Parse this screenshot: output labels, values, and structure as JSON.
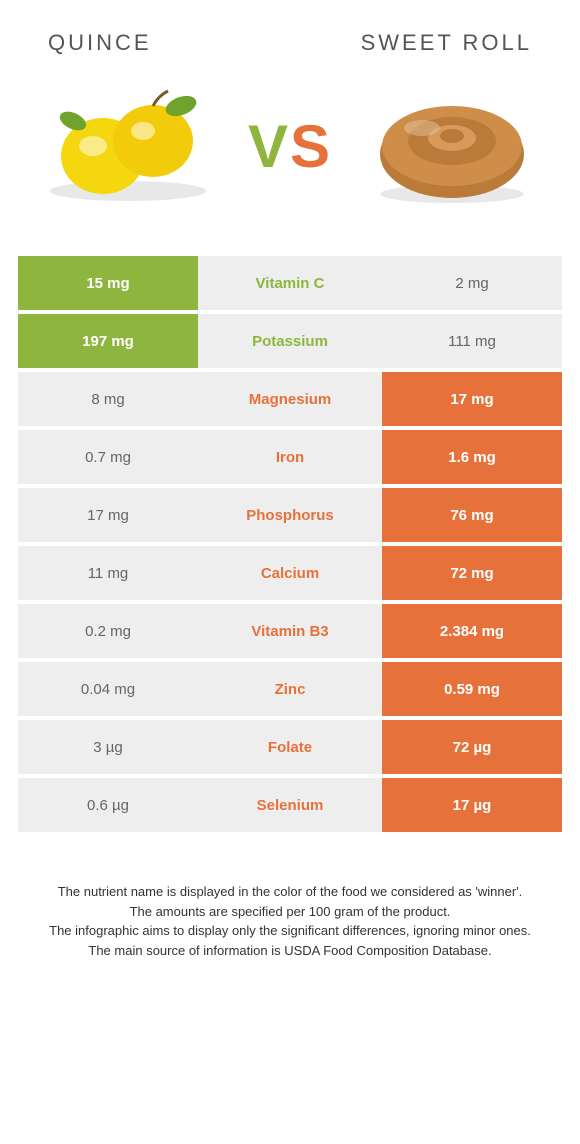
{
  "colors": {
    "left": "#8eb63f",
    "right": "#e7713b",
    "row_bg": "#eeeeee",
    "plain_text": "#666666"
  },
  "header": {
    "left_title": "QUINCE",
    "right_title": "SWEET ROLL",
    "vs_v": "V",
    "vs_s": "S"
  },
  "rows": [
    {
      "nutrient": "Vitamin C",
      "left": "15 mg",
      "right": "2 mg",
      "winner": "left"
    },
    {
      "nutrient": "Potassium",
      "left": "197 mg",
      "right": "111 mg",
      "winner": "left"
    },
    {
      "nutrient": "Magnesium",
      "left": "8 mg",
      "right": "17 mg",
      "winner": "right"
    },
    {
      "nutrient": "Iron",
      "left": "0.7 mg",
      "right": "1.6 mg",
      "winner": "right"
    },
    {
      "nutrient": "Phosphorus",
      "left": "17 mg",
      "right": "76 mg",
      "winner": "right"
    },
    {
      "nutrient": "Calcium",
      "left": "11 mg",
      "right": "72 mg",
      "winner": "right"
    },
    {
      "nutrient": "Vitamin B3",
      "left": "0.2 mg",
      "right": "2.384 mg",
      "winner": "right"
    },
    {
      "nutrient": "Zinc",
      "left": "0.04 mg",
      "right": "0.59 mg",
      "winner": "right"
    },
    {
      "nutrient": "Folate",
      "left": "3 µg",
      "right": "72 µg",
      "winner": "right"
    },
    {
      "nutrient": "Selenium",
      "left": "0.6 µg",
      "right": "17 µg",
      "winner": "right"
    }
  ],
  "notes": [
    "The nutrient name is displayed in the color of the food we considered as 'winner'.",
    "The amounts are specified per 100 gram of the product.",
    "The infographic aims to display only the significant differences, ignoring minor ones.",
    "The main source of information is USDA Food Composition Database."
  ]
}
